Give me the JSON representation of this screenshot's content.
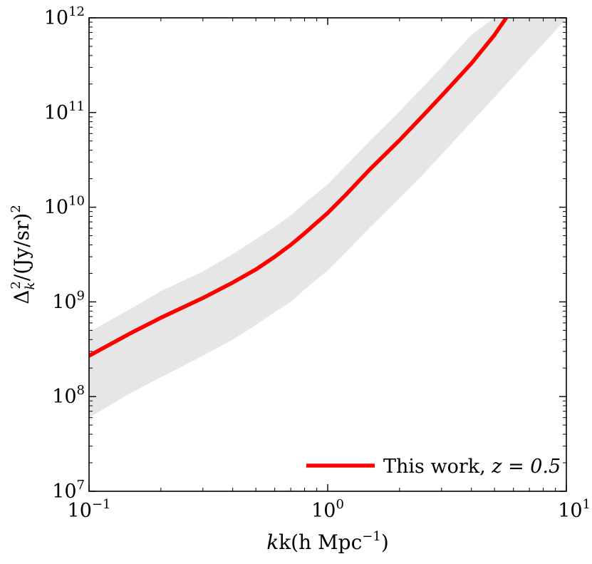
{
  "chart_data": {
    "type": "line",
    "xscale": "log",
    "yscale": "log",
    "xlim": [
      0.1,
      10
    ],
    "ylim": [
      10000000.0,
      1000000000000.0
    ],
    "xlabel": {
      "main": "k(h Mpc",
      "sup": "−1",
      "close": ")"
    },
    "ylabel": {
      "pre": "Δ",
      "sub": "k",
      "sup1": "2",
      "mid": "/(Jy/sr)",
      "sup2": "2"
    },
    "x_ticks": [
      {
        "value": 0.1,
        "base": "10",
        "exp": "−1"
      },
      {
        "value": 1,
        "base": "10",
        "exp": "0"
      },
      {
        "value": 10,
        "base": "10",
        "exp": "1"
      }
    ],
    "y_ticks": [
      {
        "value": 10000000.0,
        "base": "10",
        "exp": "7"
      },
      {
        "value": 100000000.0,
        "base": "10",
        "exp": "8"
      },
      {
        "value": 1000000000.0,
        "base": "10",
        "exp": "9"
      },
      {
        "value": 10000000000.0,
        "base": "10",
        "exp": "10"
      },
      {
        "value": 100000000000.0,
        "base": "10",
        "exp": "11"
      },
      {
        "value": 1000000000000.0,
        "base": "10",
        "exp": "12"
      }
    ],
    "series": [
      {
        "name": "This work, z = 0.5",
        "legend_text": "This work, ",
        "legend_math": "z = 0.5",
        "color": "#ff0000",
        "x": [
          0.1,
          0.15,
          0.2,
          0.3,
          0.4,
          0.5,
          0.6,
          0.7,
          0.8,
          1.0,
          1.2,
          1.5,
          2.0,
          2.5,
          3.0,
          4.0,
          5.0,
          5.6
        ],
        "y": [
          270000000.0,
          470000000.0,
          680000000.0,
          1100000000.0,
          1600000000.0,
          2200000000.0,
          3000000000.0,
          4000000000.0,
          5300000000.0,
          8700000000.0,
          13800000000.0,
          25000000000.0,
          51000000000.0,
          92000000000.0,
          150000000000.0,
          330000000000.0,
          660000000000.0,
          1000000000000.0
        ]
      }
    ],
    "band": {
      "name": "uncertainty",
      "color": "#e6e6e6",
      "x": [
        0.1,
        0.15,
        0.2,
        0.3,
        0.4,
        0.5,
        0.6,
        0.7,
        0.8,
        1.0,
        1.2,
        1.5,
        2.0,
        2.5,
        3.0,
        4.0,
        5.0,
        6.0,
        7.0,
        8.0,
        9.0,
        10.0
      ],
      "upper": [
        480000000.0,
        850000000.0,
        1300000000.0,
        2100000000.0,
        3200000000.0,
        4600000000.0,
        6200000000.0,
        8200000000.0,
        11000000000.0,
        17500000000.0,
        28000000000.0,
        50000000000.0,
        103000000000.0,
        185000000000.0,
        300000000000.0,
        660000000000.0,
        1000000000000.0,
        1200000000000.0,
        1300000000000.0,
        1300000000000.0,
        1300000000000.0,
        1300000000000.0
      ],
      "lower": [
        60000000.0,
        110000000.0,
        160000000.0,
        270000000.0,
        400000000.0,
        570000000.0,
        780000000.0,
        1000000000.0,
        1350000000.0,
        2150000000.0,
        3400000000.0,
        6100000000.0,
        12500000000.0,
        22000000000.0,
        36000000000.0,
        79000000000.0,
        145000000000.0,
        240000000000.0,
        370000000000.0,
        530000000000.0,
        740000000000.0,
        980000000000.0
      ]
    },
    "legend_position": "lower-right",
    "grid": false
  }
}
